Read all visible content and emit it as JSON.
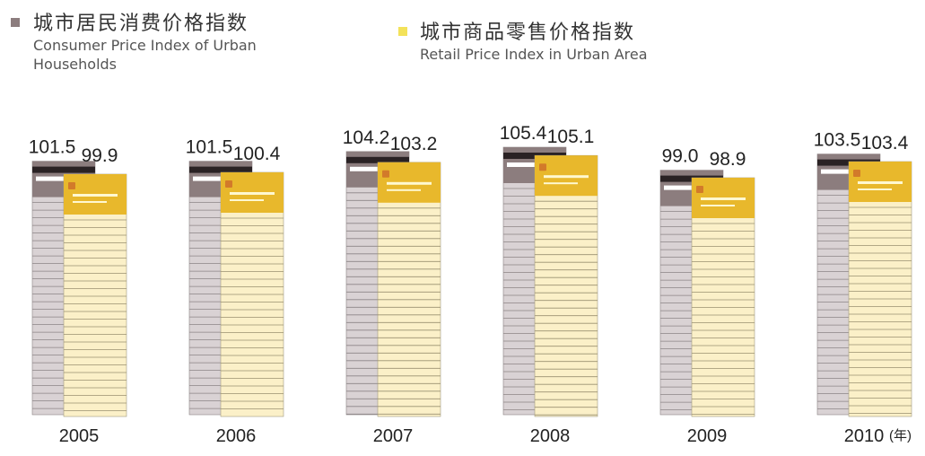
{
  "chart_data": {
    "type": "card-bar",
    "categories": [
      "2005",
      "2006",
      "2007",
      "2008",
      "2009",
      "2010"
    ],
    "x_unit": "(年)",
    "series": [
      {
        "name": "城市居民消费价格指数",
        "name_en": "Consumer Price Index of Urban Households",
        "color": "#8c7d7e",
        "values": [
          101.5,
          101.5,
          104.2,
          105.4,
          99.0,
          103.5
        ],
        "value_labels": [
          "101.5",
          "101.5",
          "104.2",
          "105.4",
          "99.0",
          "103.5"
        ]
      },
      {
        "name": "城市商品零售价格指数",
        "name_en": "Retail Price Index in Urban Area",
        "color": "#f3e25a",
        "values": [
          99.9,
          100.4,
          103.2,
          105.1,
          98.9,
          103.4
        ],
        "value_labels": [
          "99.9",
          "100.4",
          "103.2",
          "105.1",
          "98.9",
          "103.4"
        ]
      }
    ]
  }
}
